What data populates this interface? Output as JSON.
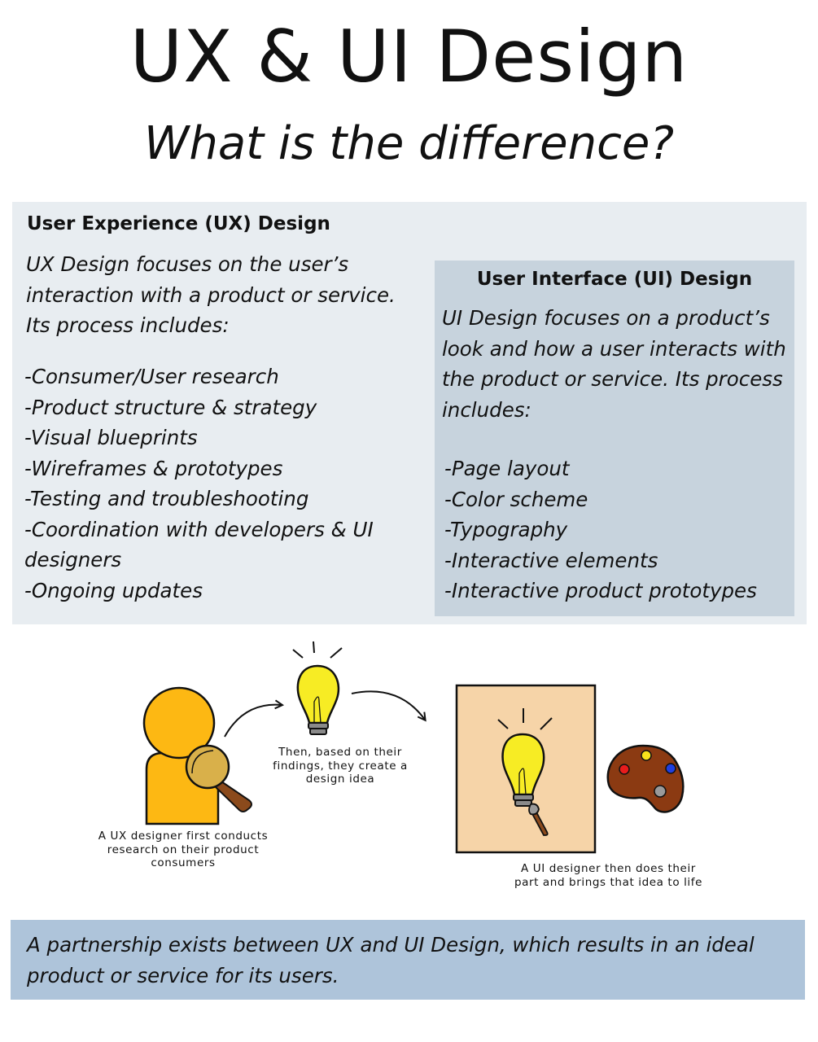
{
  "title": "UX & UI Design",
  "subtitle": "What is the difference?",
  "ux": {
    "heading": "User Experience (UX) Design",
    "intro": "UX Design focuses on the user’s interaction with a product or service. Its process includes:",
    "items": [
      "-Consumer/User research",
      "-Product structure & strategy",
      "-Visual blueprints",
      "-Wireframes & prototypes",
      "-Testing and troubleshooting",
      "-Coordination with developers & UI designers",
      "-Ongoing updates"
    ]
  },
  "ui": {
    "heading": "User Interface (UI) Design",
    "intro": "UI Design focuses on a product’s look and how a user interacts with the product or service. Its process includes:",
    "items": [
      "-Page layout",
      "-Color scheme",
      "-Typography",
      "-Interactive elements",
      "-Interactive product prototypes"
    ]
  },
  "illustration": {
    "caption_research": "A UX designer first conducts research on their product consumers",
    "caption_idea": "Then, based on their findings, they create a design idea",
    "caption_ui": "A UI designer then does their part and brings that idea to life",
    "colors": {
      "person": "#fdb813",
      "magnifier_lens": "#d9b04a",
      "bulb": "#f7ec24",
      "canvas": "#f6d4a8",
      "palette": "#8b3a12",
      "paint_red": "#e81c1c",
      "paint_yellow": "#f7e11b",
      "paint_blue": "#1f3fe0"
    }
  },
  "footer": {
    "text": "A partnership exists between UX and UI Design, which results in an ideal product or service for its users."
  }
}
